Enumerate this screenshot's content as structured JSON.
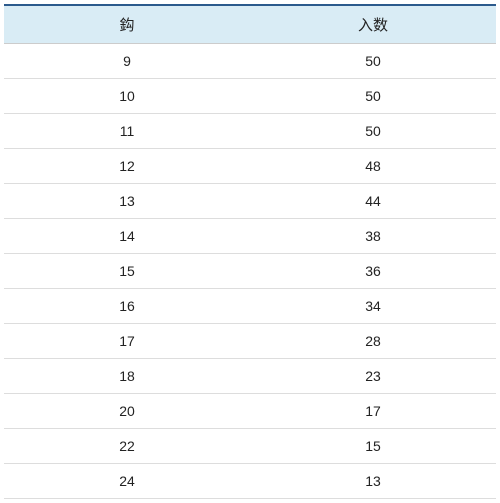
{
  "table": {
    "type": "table",
    "columns": [
      "鈎",
      "入数"
    ],
    "rows": [
      [
        "9",
        "50"
      ],
      [
        "10",
        "50"
      ],
      [
        "11",
        "50"
      ],
      [
        "12",
        "48"
      ],
      [
        "13",
        "44"
      ],
      [
        "14",
        "38"
      ],
      [
        "15",
        "36"
      ],
      [
        "16",
        "34"
      ],
      [
        "17",
        "28"
      ],
      [
        "18",
        "23"
      ],
      [
        "20",
        "17"
      ],
      [
        "22",
        "15"
      ],
      [
        "24",
        "13"
      ]
    ],
    "header_bg_color": "#d9ecf5",
    "header_border_top_color": "#2b5a8c",
    "border_color": "#dddddd",
    "text_color": "#222222",
    "background_color": "#ffffff",
    "header_fontsize": 15,
    "cell_fontsize": 14,
    "column_widths": [
      "50%",
      "50%"
    ],
    "alignment": "center"
  }
}
